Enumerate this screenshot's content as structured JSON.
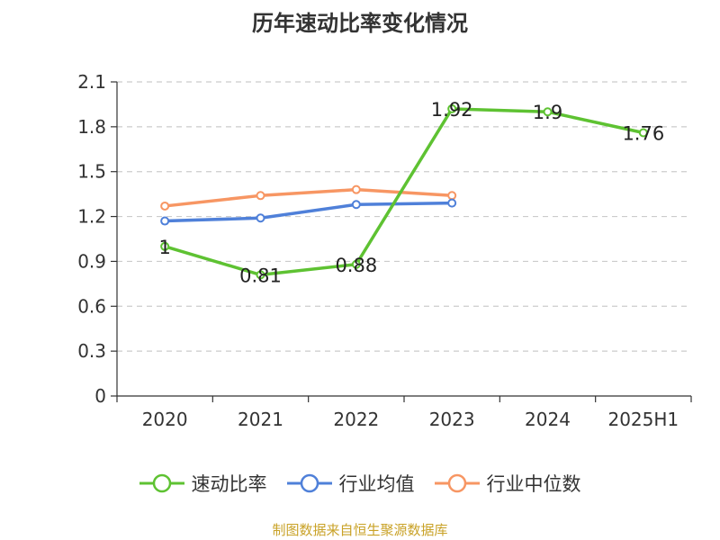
{
  "title": "历年速动比率变化情况",
  "source": "制图数据来自恒生聚源数据库",
  "chart_data": {
    "type": "line",
    "title": "历年速动比率变化情况",
    "categories": [
      "2020",
      "2021",
      "2022",
      "2023",
      "2024",
      "2025H1"
    ],
    "ylim": [
      0,
      2.1
    ],
    "yticks": [
      "0",
      "0.3",
      "0.6",
      "0.9",
      "1.2",
      "1.5",
      "1.8",
      "2.1"
    ],
    "grid": true,
    "legend_position": "bottom",
    "series": [
      {
        "name": "速动比率",
        "color": "#5ec232",
        "values": [
          1,
          0.81,
          0.88,
          1.92,
          1.9,
          1.76
        ],
        "labels": [
          "1",
          "0.81",
          "0.88",
          "1.92",
          "1.9",
          "1.76"
        ]
      },
      {
        "name": "行业均值",
        "color": "#4f80d9",
        "values": [
          1.17,
          1.19,
          1.28,
          1.29,
          null,
          null
        ]
      },
      {
        "name": "行业中位数",
        "color": "#f79663",
        "values": [
          1.27,
          1.34,
          1.38,
          1.34,
          null,
          null
        ]
      }
    ]
  }
}
